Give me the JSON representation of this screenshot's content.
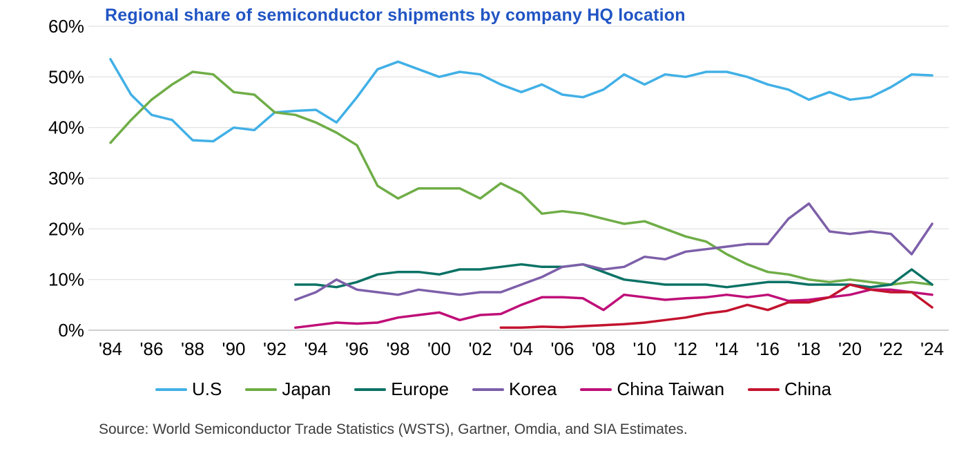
{
  "title": "Regional share of semiconductor shipments by company HQ location",
  "source": "Source: World Semiconductor Trade Statistics (WSTS), Gartner, Omdia, and SIA Estimates.",
  "title_color": "#2155c4",
  "chart_data": {
    "type": "line",
    "title": "Regional share of semiconductor shipments by company HQ location",
    "xlabel": "",
    "ylabel": "",
    "x_start": 1984,
    "x_end": 2024,
    "x_tick_step": 2,
    "x_tick_prefix": "'",
    "ylim": [
      0,
      60
    ],
    "y_tick_step": 10,
    "y_tick_suffix": "%",
    "grid": true,
    "legend_position": "bottom",
    "series": [
      {
        "name": "U.S",
        "color": "#41b0e6",
        "start_year": 1984,
        "values": [
          53.5,
          46.5,
          42.5,
          41.5,
          37.5,
          37.3,
          40,
          39.5,
          43,
          43.3,
          43.5,
          41,
          46,
          51.5,
          53,
          51.5,
          50,
          51,
          50.5,
          48.5,
          47,
          48.5,
          46.5,
          46,
          47.5,
          50.5,
          48.5,
          50.5,
          50,
          51,
          51,
          50,
          48.5,
          47.5,
          45.5,
          47,
          45.5,
          46,
          48,
          50.5,
          50.3
        ]
      },
      {
        "name": "Japan",
        "color": "#6fad47",
        "start_year": 1984,
        "values": [
          37,
          41.5,
          45.5,
          48.5,
          51,
          50.5,
          47,
          46.5,
          43,
          42.5,
          41,
          39,
          36.5,
          28.5,
          26,
          28,
          28,
          28,
          26,
          29,
          27,
          23,
          23.5,
          23,
          22,
          21,
          21.5,
          20,
          18.5,
          17.5,
          15,
          13,
          11.5,
          11,
          10,
          9.5,
          10,
          9.5,
          9,
          9.5,
          9
        ]
      },
      {
        "name": "Europe",
        "color": "#0b7265",
        "start_year": 1993,
        "values": [
          9,
          9,
          8.5,
          9.5,
          11,
          11.5,
          11.5,
          11,
          12,
          12,
          12.5,
          13,
          12.5,
          12.5,
          13,
          11.5,
          10,
          9.5,
          9,
          9,
          9,
          8.5,
          9,
          9.5,
          9.5,
          9,
          9,
          9,
          8.5,
          9,
          12,
          9
        ]
      },
      {
        "name": "Korea",
        "color": "#7d5fa9",
        "start_year": 1993,
        "values": [
          6,
          7.5,
          10,
          8,
          7.5,
          7,
          8,
          7.5,
          7,
          7.5,
          7.5,
          9,
          10.5,
          12.5,
          13,
          12,
          12.5,
          14.5,
          14,
          15.5,
          16,
          16.5,
          17,
          17,
          22,
          25,
          19.5,
          19,
          19.5,
          19,
          15,
          21
        ]
      },
      {
        "name": "China Taiwan",
        "color": "#bf0f78",
        "start_year": 1993,
        "values": [
          0.5,
          1,
          1.5,
          1.3,
          1.5,
          2.5,
          3,
          3.5,
          2,
          3,
          3.2,
          5,
          6.5,
          6.5,
          6.3,
          4,
          7,
          6.5,
          6,
          6.3,
          6.5,
          7,
          6.5,
          7,
          5.8,
          6,
          6.5,
          7,
          8,
          8,
          7.5,
          7
        ]
      },
      {
        "name": "China",
        "color": "#c3132e",
        "start_year": 2003,
        "values": [
          0.5,
          0.5,
          0.7,
          0.6,
          0.8,
          1,
          1.2,
          1.5,
          2,
          2.5,
          3.3,
          3.8,
          5,
          4,
          5.5,
          5.5,
          6.5,
          9,
          8,
          7.5,
          7.5,
          4.5
        ]
      }
    ]
  }
}
